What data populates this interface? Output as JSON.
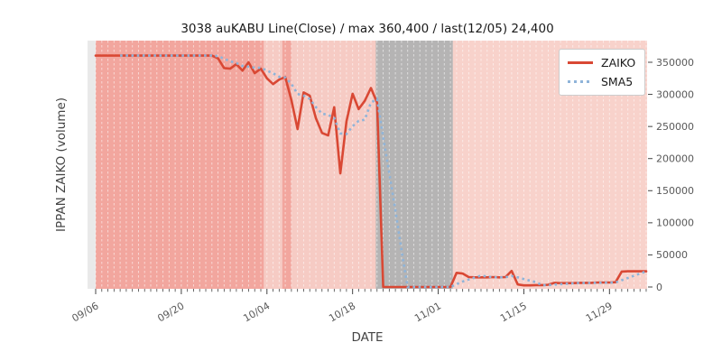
{
  "title": "3038 auKABU Line(Close) / max 360,400 / last(12/05) 24,400",
  "xlabel": "DATE",
  "ylabel": "IPPAN ZAIKO (volume)",
  "legend": {
    "items": [
      {
        "label": "ZAIKO",
        "color": "#d94834",
        "style": "solid"
      },
      {
        "label": "SMA5",
        "color": "#8fb4d9",
        "style": "dotted"
      }
    ]
  },
  "colors": {
    "figure_background": "#ffffff",
    "plot_background": "#e9e9e9",
    "band_salmon": "#f2a69e",
    "band_light_pink": "#f6cbc4",
    "band_light_pink_right": "#f8d2cb",
    "band_gray": "#b5b4b4",
    "gridline": "#ffffff",
    "tick": "#444444",
    "tick_label": "#595959"
  },
  "chart_data": {
    "type": "line",
    "title": "3038 auKABU Line(Close) / max 360,400 / last(12/05) 24,400",
    "xlabel": "DATE",
    "ylabel": "IPPAN ZAIKO (volume)",
    "x_unit": "day index, day 0 = 09/06, day 90 = 12/05",
    "xlim_days": [
      -1.33,
      90.15
    ],
    "ylim": [
      -2800,
      383700
    ],
    "grid": "vertical white dashed line per day",
    "legend_position": "upper right",
    "x_ticks": [
      {
        "day": 0,
        "label": "09/06"
      },
      {
        "day": 14,
        "label": "09/20"
      },
      {
        "day": 28,
        "label": "10/04"
      },
      {
        "day": 42,
        "label": "10/18"
      },
      {
        "day": 56,
        "label": "11/01"
      },
      {
        "day": 70,
        "label": "11/15"
      },
      {
        "day": 84,
        "label": "11/29"
      }
    ],
    "y_ticks": [
      0,
      50000,
      100000,
      150000,
      200000,
      250000,
      300000,
      350000
    ],
    "annotations": {
      "max": 360400,
      "last_date": "12/05",
      "last_value": 24400
    },
    "background_bands": [
      {
        "from_day": 0,
        "to_day": 27.5,
        "color": "#f2a69e"
      },
      {
        "from_day": 27.5,
        "to_day": 30.5,
        "color": "#f6cbc4"
      },
      {
        "from_day": 30.5,
        "to_day": 32,
        "color": "#f2a69e"
      },
      {
        "from_day": 32,
        "to_day": 45.8,
        "color": "#f6cbc4"
      },
      {
        "from_day": 45.8,
        "to_day": 58.4,
        "color": "#b5b4b4"
      },
      {
        "from_day": 58.4,
        "to_day": 90.15,
        "color": "#f8d2cb"
      }
    ],
    "series": [
      {
        "name": "ZAIKO",
        "color": "#d94834",
        "style": "solid",
        "values": [
          360400,
          360400,
          360400,
          360400,
          360400,
          360400,
          360400,
          360400,
          360400,
          360400,
          360400,
          360400,
          360400,
          360400,
          360400,
          360400,
          360400,
          360400,
          360400,
          360400,
          356000,
          341000,
          340000,
          347000,
          337000,
          350000,
          333000,
          340000,
          325000,
          316000,
          323000,
          327000,
          291000,
          246000,
          303000,
          298000,
          263000,
          240000,
          236000,
          280000,
          177000,
          258000,
          301000,
          277000,
          290000,
          310000,
          287000,
          0,
          0,
          0,
          0,
          0,
          0,
          0,
          0,
          0,
          0,
          0,
          0,
          22000,
          21000,
          15500,
          15000,
          15000,
          15000,
          15500,
          15000,
          15500,
          25000,
          4000,
          2500,
          2500,
          3000,
          3000,
          3500,
          6500,
          6000,
          6000,
          6000,
          6500,
          6500,
          6500,
          7000,
          7000,
          7000,
          7500,
          24000,
          24500,
          24500,
          24500,
          24400
        ]
      },
      {
        "name": "SMA5",
        "color": "#8fb4d9",
        "style": "dotted",
        "derived": "5-day moving average of ZAIKO values, defined from day 4 onward"
      }
    ]
  }
}
